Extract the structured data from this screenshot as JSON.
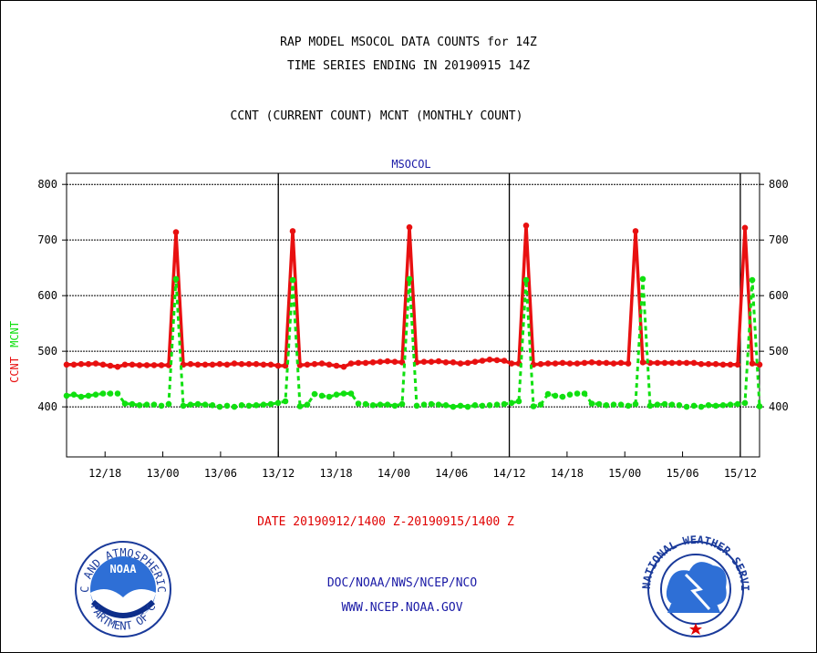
{
  "header": {
    "title_line1": "RAP MODEL MSOCOL DATA COUNTS for 14Z",
    "title_line2": "TIME SERIES ENDING IN 20190915 14Z",
    "subtitle": "CCNT (CURRENT COUNT) MCNT (MONTHLY COUNT)"
  },
  "footer": {
    "date_range": "DATE 20190912/1400 Z-20190915/1400 Z",
    "org": "DOC/NOAA/NWS/NCEP/NCO",
    "url": "WWW.NCEP.NOAA.GOV"
  },
  "logos": {
    "noaa_text": "NOAA",
    "noaa_ring_top": "NATIONAL OCEANIC AND ATMOSPHERIC ADMINISTRATION",
    "noaa_ring_bottom": "U.S. DEPARTMENT OF COMMERCE",
    "nws_ring": "NATIONAL WEATHER SERVICE"
  },
  "colors": {
    "ccnt": "#e81010",
    "mcnt": "#10e010",
    "title_blue": "#1a1aa6",
    "date_red": "#e00000"
  },
  "chart_data": {
    "type": "line",
    "title": "MSOCOL",
    "ylabel_ccnt": "CCNT",
    "ylabel_mcnt": "MCNT",
    "ylim": [
      310,
      820
    ],
    "yticks": [
      400,
      500,
      600,
      700,
      800
    ],
    "ytick_labels": [
      "400",
      "500",
      "600",
      "700",
      "800"
    ],
    "grid": true,
    "x_unit": "hours from 20190912/1400 Z",
    "xlim": [
      0,
      72
    ],
    "xticks": [
      4,
      10,
      16,
      22,
      28,
      34,
      40,
      46,
      52,
      58,
      64,
      70
    ],
    "xtick_labels": [
      "12/18",
      "13/00",
      "13/06",
      "13/12",
      "13/18",
      "14/00",
      "14/06",
      "14/12",
      "14/18",
      "15/00",
      "15/06",
      "15/12"
    ],
    "day_separators": [
      22,
      46,
      70
    ],
    "series": [
      {
        "name": "CCNT",
        "values": [
          476,
          476,
          477,
          477,
          478,
          476,
          474,
          472,
          476,
          476,
          475,
          475,
          475,
          475,
          475,
          714,
          476,
          477,
          476,
          476,
          476,
          477,
          476,
          478,
          477,
          477,
          477,
          476,
          476,
          474,
          474,
          716,
          475,
          476,
          477,
          478,
          476,
          474,
          472,
          478,
          479,
          479,
          480,
          481,
          482,
          481,
          480,
          723,
          480,
          481,
          481,
          482,
          480,
          480,
          478,
          479,
          481,
          483,
          485,
          484,
          483,
          478,
          478,
          726,
          476,
          477,
          478,
          478,
          479,
          478,
          478,
          479,
          480,
          479,
          479,
          478,
          479,
          478,
          716,
          480,
          479,
          479,
          479,
          479,
          479,
          479,
          479,
          477,
          477,
          477,
          476,
          476,
          476,
          722,
          478,
          476
        ]
      },
      {
        "name": "MCNT",
        "values": [
          420,
          422,
          418,
          420,
          422,
          424,
          424,
          424,
          406,
          405,
          403,
          404,
          404,
          402,
          405,
          630,
          402,
          404,
          405,
          404,
          403,
          400,
          402,
          400,
          403,
          402,
          403,
          404,
          405,
          407,
          410,
          628,
          401,
          404,
          423,
          420,
          418,
          422,
          424,
          424,
          406,
          405,
          403,
          404,
          404,
          402,
          405,
          630,
          402,
          404,
          405,
          404,
          403,
          400,
          402,
          400,
          403,
          402,
          403,
          404,
          405,
          407,
          410,
          628,
          401,
          404,
          423,
          420,
          418,
          422,
          424,
          424,
          406,
          405,
          403,
          404,
          404,
          402,
          405,
          630,
          402,
          404,
          405,
          404,
          403,
          400,
          402,
          400,
          403,
          402,
          403,
          404,
          405,
          407,
          628,
          401
        ]
      }
    ]
  }
}
